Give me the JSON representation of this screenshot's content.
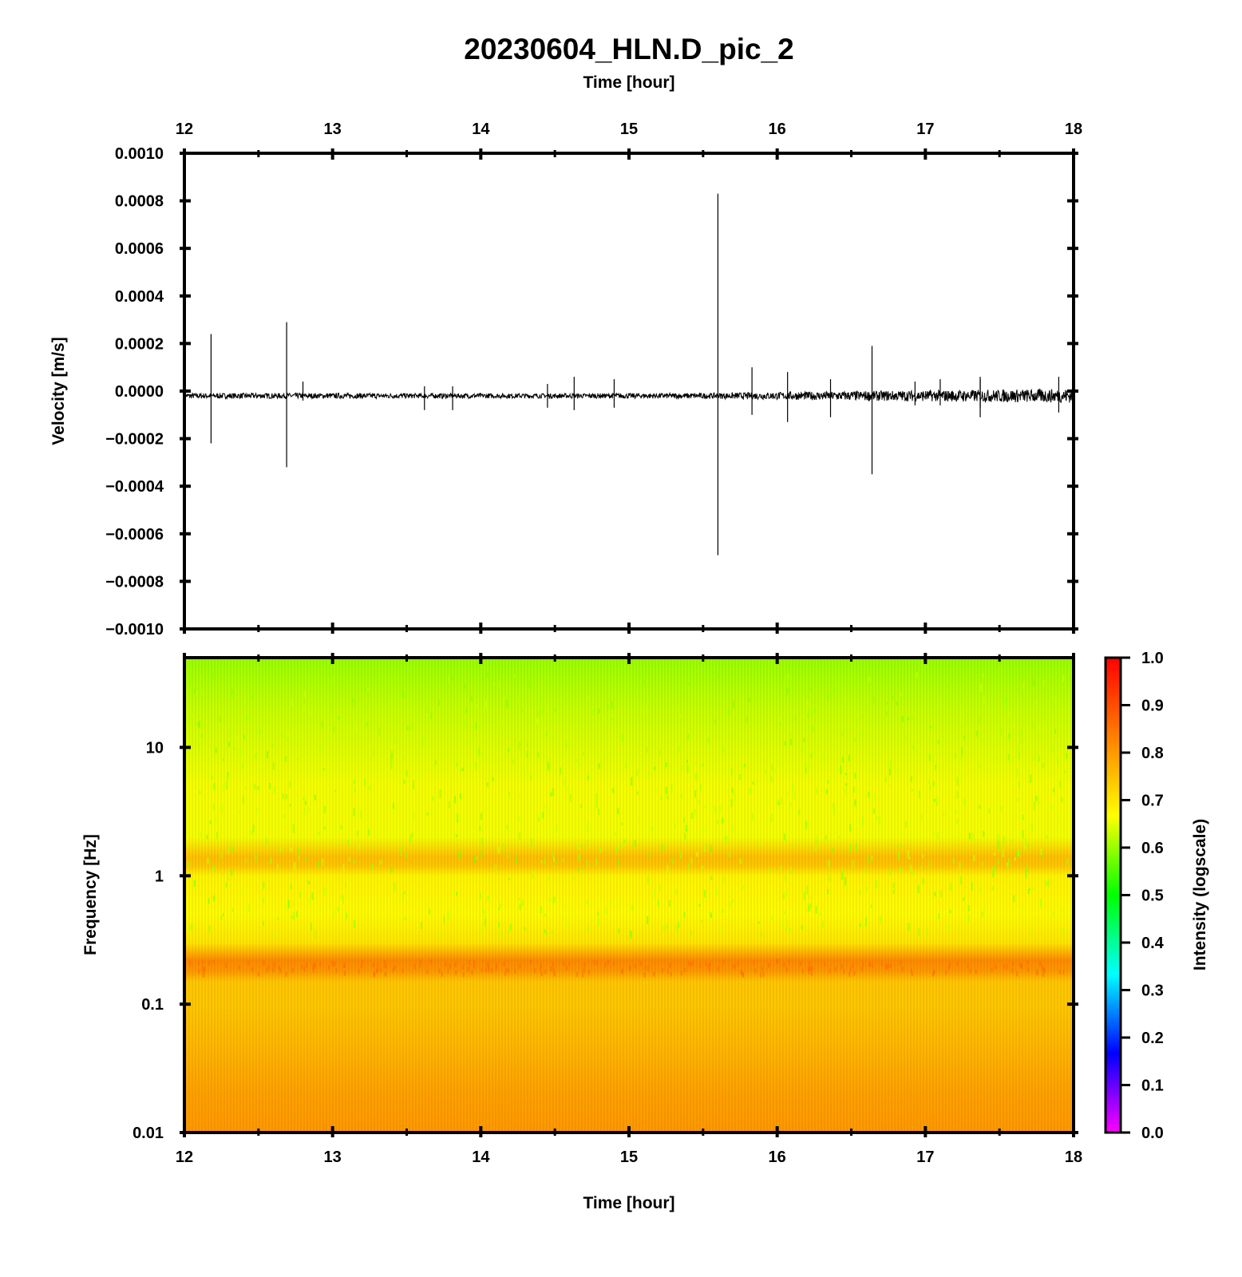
{
  "title": "20230604_HLN.D_pic_2",
  "chart_data": [
    {
      "type": "line",
      "name": "waveform",
      "xlabel": "Time [hour]",
      "ylabel": "Velocity [m/s]",
      "xlim": [
        12,
        18
      ],
      "ylim": [
        -0.001,
        0.001
      ],
      "x_ticks": [
        "12",
        "13",
        "14",
        "15",
        "16",
        "17",
        "18"
      ],
      "y_ticks": [
        "0.0010",
        "0.0008",
        "0.0006",
        "0.0004",
        "0.0002",
        "0.0000",
        "−0.0002",
        "−0.0004",
        "−0.0006",
        "−0.0008",
        "−0.0010"
      ],
      "y_tick_values": [
        0.001,
        0.0008,
        0.0006,
        0.0004,
        0.0002,
        0.0,
        -0.0002,
        -0.0004,
        -0.0006,
        -0.0008,
        -0.001
      ],
      "baseline": -2e-05,
      "noise_amplitude": [
        {
          "x": 12.0,
          "amp": 1.2e-05
        },
        {
          "x": 14.5,
          "amp": 1e-05
        },
        {
          "x": 15.5,
          "amp": 1.2e-05
        },
        {
          "x": 16.5,
          "amp": 2e-05
        },
        {
          "x": 18.0,
          "amp": 3e-05
        }
      ],
      "spikes": [
        {
          "x": 12.18,
          "max": 0.00024,
          "min": -0.00022
        },
        {
          "x": 12.69,
          "max": 0.00029,
          "min": -0.00032
        },
        {
          "x": 12.8,
          "max": 4e-05,
          "min": -4e-05
        },
        {
          "x": 13.62,
          "max": 2e-05,
          "min": -8e-05
        },
        {
          "x": 13.81,
          "max": 2e-05,
          "min": -8e-05
        },
        {
          "x": 14.45,
          "max": 3e-05,
          "min": -7e-05
        },
        {
          "x": 14.63,
          "max": 6e-05,
          "min": -8e-05
        },
        {
          "x": 14.9,
          "max": 5e-05,
          "min": -7e-05
        },
        {
          "x": 15.6,
          "max": 0.00083,
          "min": -0.00069
        },
        {
          "x": 15.83,
          "max": 0.0001,
          "min": -0.0001
        },
        {
          "x": 16.07,
          "max": 8e-05,
          "min": -0.00013
        },
        {
          "x": 16.36,
          "max": 5e-05,
          "min": -0.00011
        },
        {
          "x": 16.64,
          "max": 0.00019,
          "min": -0.00035
        },
        {
          "x": 16.93,
          "max": 4e-05,
          "min": -6e-05
        },
        {
          "x": 17.1,
          "max": 5e-05,
          "min": -6e-05
        },
        {
          "x": 17.37,
          "max": 5e-05,
          "min": -7e-05
        },
        {
          "x": 17.37,
          "max": 6e-05,
          "min": -0.00011
        },
        {
          "x": 17.9,
          "max": 6e-05,
          "min": -9e-05
        }
      ]
    },
    {
      "type": "heatmap",
      "name": "spectrogram",
      "xlabel": "Time [hour]",
      "ylabel": "Frequency [Hz]",
      "xlim": [
        12,
        18
      ],
      "ylim": [
        0.01,
        50
      ],
      "yscale": "log",
      "x_ticks": [
        "12",
        "13",
        "14",
        "15",
        "16",
        "17",
        "18"
      ],
      "y_ticks": [
        "10",
        "1",
        "0.1",
        "0.01"
      ],
      "y_tick_values": [
        10,
        1,
        0.1,
        0.01
      ],
      "intensity_profile": [
        {
          "freq": 50,
          "value": 0.6
        },
        {
          "freq": 20,
          "value": 0.63
        },
        {
          "freq": 5,
          "value": 0.66
        },
        {
          "freq": 2,
          "value": 0.66
        },
        {
          "freq": 1.4,
          "value": 0.75
        },
        {
          "freq": 1.2,
          "value": 0.74
        },
        {
          "freq": 1.0,
          "value": 0.68
        },
        {
          "freq": 0.5,
          "value": 0.67
        },
        {
          "freq": 0.3,
          "value": 0.7
        },
        {
          "freq": 0.22,
          "value": 0.82
        },
        {
          "freq": 0.18,
          "value": 0.8
        },
        {
          "freq": 0.15,
          "value": 0.74
        },
        {
          "freq": 0.1,
          "value": 0.74
        },
        {
          "freq": 0.05,
          "value": 0.76
        },
        {
          "freq": 0.02,
          "value": 0.79
        },
        {
          "freq": 0.01,
          "value": 0.8
        }
      ],
      "colorbar": {
        "label": "Intensity (logscale)",
        "range": [
          0.0,
          1.0
        ],
        "ticks": [
          "1.0",
          "0.9",
          "0.8",
          "0.7",
          "0.6",
          "0.5",
          "0.4",
          "0.3",
          "0.2",
          "0.1",
          "0.0"
        ],
        "tick_values": [
          1.0,
          0.9,
          0.8,
          0.7,
          0.6,
          0.5,
          0.4,
          0.3,
          0.2,
          0.1,
          0.0
        ],
        "colormap": [
          "#ff00ff",
          "#0000ff",
          "#00ffff",
          "#00ff00",
          "#ffff00",
          "#ff8000",
          "#ff0000"
        ]
      }
    }
  ]
}
